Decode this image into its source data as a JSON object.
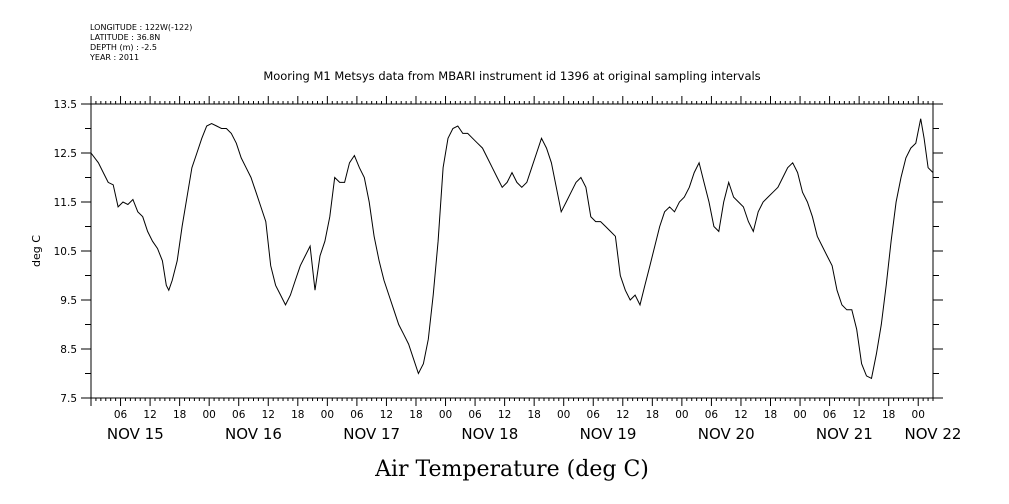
{
  "metadata": {
    "longitude": "LONGITUDE : 122W(-122)",
    "latitude": "LATITUDE : 36.8N",
    "depth": "DEPTH (m) : -2.5",
    "year": "YEAR : 2011"
  },
  "chart_data": {
    "type": "line",
    "title": "Mooring M1 Metsys data from MBARI instrument id 1396 at original sampling intervals",
    "xlabel": "Air Temperature (deg C)",
    "ylabel": "deg C",
    "ylim": [
      7.5,
      13.5
    ],
    "yticks": [
      7.5,
      8.5,
      9.5,
      10.5,
      11.5,
      12.5,
      13.5
    ],
    "xlim_hours": [
      0,
      171
    ],
    "x_unit": "hours after NOV 15 00:00",
    "xtick_hours": [
      6,
      12,
      18,
      24,
      30,
      36,
      42,
      48,
      54,
      60,
      66,
      72,
      78,
      84,
      90,
      96,
      102,
      108,
      114,
      120,
      126,
      132,
      138,
      144,
      150,
      156,
      162,
      168
    ],
    "xtick_labels": [
      "06",
      "12",
      "18",
      "00",
      "06",
      "12",
      "18",
      "00",
      "06",
      "12",
      "18",
      "00",
      "06",
      "12",
      "18",
      "00",
      "06",
      "12",
      "18",
      "00",
      "06",
      "12",
      "18",
      "00",
      "06",
      "12",
      "18",
      "00"
    ],
    "day_labels": [
      {
        "label": "NOV 15",
        "hour": 9
      },
      {
        "label": "NOV 16",
        "hour": 33
      },
      {
        "label": "NOV 17",
        "hour": 57
      },
      {
        "label": "NOV 18",
        "hour": 81
      },
      {
        "label": "NOV 19",
        "hour": 105
      },
      {
        "label": "NOV 20",
        "hour": 129
      },
      {
        "label": "NOV 21",
        "hour": 153
      },
      {
        "label": "NOV 22",
        "hour": 171
      }
    ],
    "grid": false,
    "series": [
      {
        "values": [
          [
            0,
            12.5
          ],
          [
            1.5,
            12.3
          ],
          [
            2.5,
            12.1
          ],
          [
            3.5,
            11.9
          ],
          [
            4.5,
            11.85
          ],
          [
            5.5,
            11.4
          ],
          [
            6.5,
            11.5
          ],
          [
            7.5,
            11.45
          ],
          [
            8.5,
            11.55
          ],
          [
            9.5,
            11.3
          ],
          [
            10.5,
            11.2
          ],
          [
            11.5,
            10.9
          ],
          [
            12.5,
            10.7
          ],
          [
            13.5,
            10.55
          ],
          [
            14.5,
            10.3
          ],
          [
            15.3,
            9.8
          ],
          [
            15.8,
            9.7
          ],
          [
            16.5,
            9.9
          ],
          [
            17.5,
            10.3
          ],
          [
            18.5,
            11.0
          ],
          [
            19.5,
            11.6
          ],
          [
            20.5,
            12.2
          ],
          [
            21.5,
            12.5
          ],
          [
            22.5,
            12.8
          ],
          [
            23.5,
            13.05
          ],
          [
            24.5,
            13.1
          ],
          [
            25.5,
            13.05
          ],
          [
            26.5,
            13.0
          ],
          [
            27.5,
            13.0
          ],
          [
            28.5,
            12.9
          ],
          [
            29.5,
            12.7
          ],
          [
            30.5,
            12.4
          ],
          [
            31.5,
            12.2
          ],
          [
            32.5,
            12.0
          ],
          [
            33.5,
            11.7
          ],
          [
            34.5,
            11.4
          ],
          [
            35.5,
            11.1
          ],
          [
            36.5,
            10.2
          ],
          [
            37.5,
            9.8
          ],
          [
            38.5,
            9.6
          ],
          [
            39.5,
            9.4
          ],
          [
            40.5,
            9.6
          ],
          [
            41.5,
            9.9
          ],
          [
            42.5,
            10.2
          ],
          [
            43.5,
            10.4
          ],
          [
            44.5,
            10.6
          ],
          [
            45.5,
            9.7
          ],
          [
            46.5,
            10.4
          ],
          [
            47.5,
            10.7
          ],
          [
            48.5,
            11.2
          ],
          [
            49.5,
            12.0
          ],
          [
            50.5,
            11.9
          ],
          [
            51.5,
            11.9
          ],
          [
            52.5,
            12.3
          ],
          [
            53.5,
            12.45
          ],
          [
            54.5,
            12.2
          ],
          [
            55.5,
            12.0
          ],
          [
            56.5,
            11.5
          ],
          [
            57.5,
            10.8
          ],
          [
            58.5,
            10.3
          ],
          [
            59.5,
            9.9
          ],
          [
            60.5,
            9.6
          ],
          [
            61.5,
            9.3
          ],
          [
            62.5,
            9.0
          ],
          [
            63.5,
            8.8
          ],
          [
            64.5,
            8.6
          ],
          [
            65.5,
            8.3
          ],
          [
            66.5,
            8.0
          ],
          [
            67.5,
            8.2
          ],
          [
            68.5,
            8.7
          ],
          [
            69.5,
            9.6
          ],
          [
            70.5,
            10.7
          ],
          [
            71.5,
            12.2
          ],
          [
            72.5,
            12.8
          ],
          [
            73.5,
            13.0
          ],
          [
            74.5,
            13.05
          ],
          [
            75.5,
            12.9
          ],
          [
            76.5,
            12.9
          ],
          [
            77.5,
            12.8
          ],
          [
            78.5,
            12.7
          ],
          [
            79.5,
            12.6
          ],
          [
            80.5,
            12.4
          ],
          [
            81.5,
            12.2
          ],
          [
            82.5,
            12.0
          ],
          [
            83.5,
            11.8
          ],
          [
            84.5,
            11.9
          ],
          [
            85.5,
            12.1
          ],
          [
            86.5,
            11.9
          ],
          [
            87.5,
            11.8
          ],
          [
            88.5,
            11.9
          ],
          [
            89.5,
            12.2
          ],
          [
            90.5,
            12.5
          ],
          [
            91.5,
            12.8
          ],
          [
            92.5,
            12.6
          ],
          [
            93.5,
            12.3
          ],
          [
            94.5,
            11.8
          ],
          [
            95.5,
            11.3
          ],
          [
            96.5,
            11.5
          ],
          [
            97.5,
            11.7
          ],
          [
            98.5,
            11.9
          ],
          [
            99.5,
            12.0
          ],
          [
            100.5,
            11.8
          ],
          [
            101.5,
            11.2
          ],
          [
            102.5,
            11.1
          ],
          [
            103.5,
            11.1
          ],
          [
            104.5,
            11.0
          ],
          [
            105.5,
            10.9
          ],
          [
            106.5,
            10.8
          ],
          [
            107.5,
            10.0
          ],
          [
            108.5,
            9.7
          ],
          [
            109.5,
            9.5
          ],
          [
            110.5,
            9.6
          ],
          [
            111.5,
            9.4
          ],
          [
            112.5,
            9.8
          ],
          [
            113.5,
            10.2
          ],
          [
            114.5,
            10.6
          ],
          [
            115.5,
            11.0
          ],
          [
            116.5,
            11.3
          ],
          [
            117.5,
            11.4
          ],
          [
            118.5,
            11.3
          ],
          [
            119.5,
            11.5
          ],
          [
            120.5,
            11.6
          ],
          [
            121.5,
            11.8
          ],
          [
            122.5,
            12.1
          ],
          [
            123.5,
            12.3
          ],
          [
            124.5,
            11.9
          ],
          [
            125.5,
            11.5
          ],
          [
            126.5,
            11.0
          ],
          [
            127.5,
            10.9
          ],
          [
            128.5,
            11.5
          ],
          [
            129.5,
            11.9
          ],
          [
            130.5,
            11.6
          ],
          [
            131.5,
            11.5
          ],
          [
            132.5,
            11.4
          ],
          [
            133.5,
            11.1
          ],
          [
            134.5,
            10.9
          ],
          [
            135.5,
            11.3
          ],
          [
            136.5,
            11.5
          ],
          [
            137.5,
            11.6
          ],
          [
            138.5,
            11.7
          ],
          [
            139.5,
            11.8
          ],
          [
            140.5,
            12.0
          ],
          [
            141.5,
            12.2
          ],
          [
            142.5,
            12.3
          ],
          [
            143.5,
            12.1
          ],
          [
            144.5,
            11.7
          ],
          [
            145.5,
            11.5
          ],
          [
            146.5,
            11.2
          ],
          [
            147.5,
            10.8
          ],
          [
            148.5,
            10.6
          ],
          [
            149.5,
            10.4
          ],
          [
            150.5,
            10.2
          ],
          [
            151.5,
            9.7
          ],
          [
            152.5,
            9.4
          ],
          [
            153.5,
            9.3
          ],
          [
            154.5,
            9.3
          ],
          [
            155.5,
            8.9
          ],
          [
            156.5,
            8.2
          ],
          [
            157.5,
            7.95
          ],
          [
            158.5,
            7.9
          ],
          [
            159.5,
            8.4
          ],
          [
            160.5,
            9.0
          ],
          [
            161.5,
            9.8
          ],
          [
            162.5,
            10.7
          ],
          [
            163.5,
            11.5
          ],
          [
            164.5,
            12.0
          ],
          [
            165.5,
            12.4
          ],
          [
            166.5,
            12.6
          ],
          [
            167.5,
            12.7
          ],
          [
            168.5,
            13.2
          ],
          [
            169.2,
            12.8
          ],
          [
            170,
            12.2
          ],
          [
            171,
            12.1
          ]
        ]
      }
    ]
  }
}
